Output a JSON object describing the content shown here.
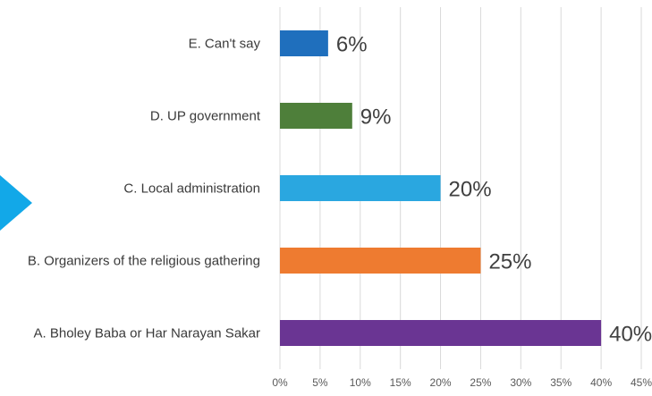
{
  "chart_data": {
    "type": "bar",
    "orientation": "horizontal",
    "title": "",
    "xlabel": "",
    "ylabel": "",
    "categories": [
      "E. Can't say",
      "D. UP government",
      "C. Local administration",
      "B. Organizers of the religious gathering",
      "A. Bholey Baba or Har Narayan Sakar"
    ],
    "values": [
      6,
      9,
      20,
      25,
      40
    ],
    "value_labels": [
      "6%",
      "9%",
      "20%",
      "25%",
      "40%"
    ],
    "bar_colors": [
      "#1f6fbd",
      "#4e7f3a",
      "#2aa7e0",
      "#ee7b30",
      "#6a3593"
    ],
    "xlim": [
      0,
      45
    ],
    "x_ticks": [
      0,
      5,
      10,
      15,
      20,
      25,
      30,
      35,
      40,
      45
    ],
    "x_tick_labels": [
      "0%",
      "5%",
      "10%",
      "15%",
      "20%",
      "25%",
      "30%",
      "35%",
      "40%",
      "45%"
    ],
    "grid": "vertical",
    "legend": "none"
  },
  "decoration": {
    "arrow_color": "#12a8e8",
    "gridline_color": "#d9d9d9"
  }
}
